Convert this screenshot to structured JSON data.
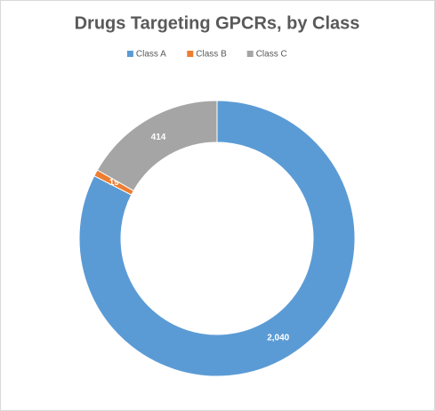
{
  "chart_data": {
    "type": "donut",
    "title": "Drugs Targeting GPCRs, by Class",
    "categories": [
      "Class A",
      "Class B",
      "Class C"
    ],
    "values": [
      2040,
      19,
      414
    ],
    "value_labels": [
      "2,040",
      "19",
      "414"
    ],
    "colors": [
      "#5b9bd5",
      "#ed7d31",
      "#a5a5a5"
    ],
    "legend": "top"
  }
}
